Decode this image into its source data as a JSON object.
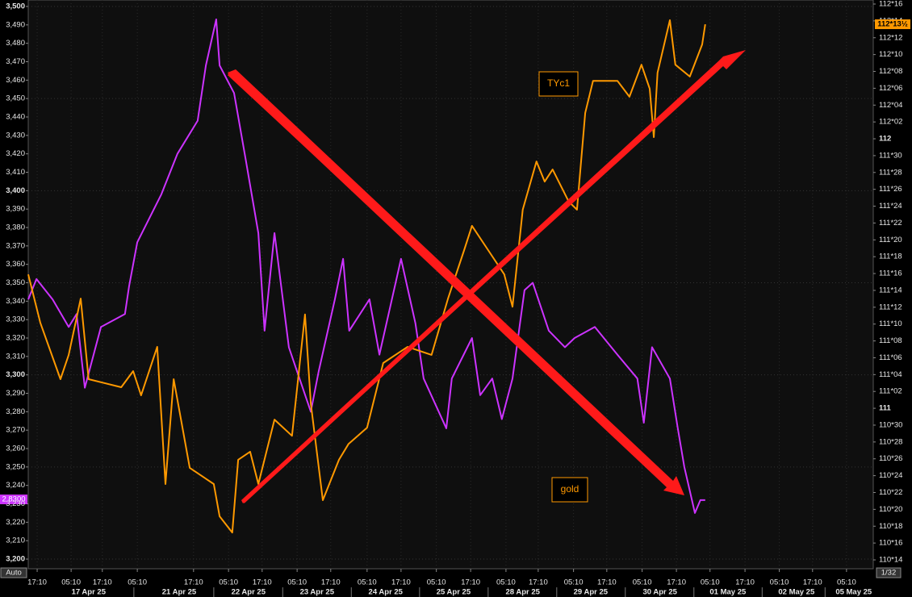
{
  "chart_data": {
    "type": "line",
    "xlim": [
      0,
      24.64
    ],
    "xticks": [
      {
        "value": 0.26,
        "label": "17:10"
      },
      {
        "value": 1.25,
        "label": "05:10"
      },
      {
        "value": 2.16,
        "label": "17:10"
      },
      {
        "value": 3.18,
        "label": "05:10"
      },
      {
        "value": 4.82,
        "label": "17:10"
      },
      {
        "value": 5.84,
        "label": "05:10"
      },
      {
        "value": 6.82,
        "label": "17:10"
      },
      {
        "value": 7.84,
        "label": "05:10"
      },
      {
        "value": 8.82,
        "label": "17:10"
      },
      {
        "value": 9.88,
        "label": "05:10"
      },
      {
        "value": 10.87,
        "label": "17:10"
      },
      {
        "value": 11.9,
        "label": "05:10"
      },
      {
        "value": 12.9,
        "label": "17:10"
      },
      {
        "value": 13.93,
        "label": "05:10"
      },
      {
        "value": 14.87,
        "label": "17:10"
      },
      {
        "value": 15.9,
        "label": "05:10"
      },
      {
        "value": 16.87,
        "label": "17:10"
      },
      {
        "value": 17.9,
        "label": "05:10"
      },
      {
        "value": 18.9,
        "label": "17:10"
      },
      {
        "value": 19.88,
        "label": "05:10"
      },
      {
        "value": 20.9,
        "label": "17:10"
      },
      {
        "value": 21.9,
        "label": "05:10"
      },
      {
        "value": 22.87,
        "label": "17:10"
      },
      {
        "value": 23.86,
        "label": "05:10"
      }
    ],
    "date_ticks": [
      {
        "value": 1.76,
        "label": "17 Apr 25"
      },
      {
        "value": 4.4,
        "label": "21 Apr 25"
      },
      {
        "value": 6.42,
        "label": "22 Apr 25"
      },
      {
        "value": 8.42,
        "label": "23 Apr 25"
      },
      {
        "value": 10.42,
        "label": "24 Apr 25"
      },
      {
        "value": 12.4,
        "label": "25 Apr 25"
      },
      {
        "value": 14.42,
        "label": "28 Apr 25"
      },
      {
        "value": 16.4,
        "label": "29 Apr 25"
      },
      {
        "value": 18.42,
        "label": "30 Apr 25"
      },
      {
        "value": 20.4,
        "label": "01 May 25"
      },
      {
        "value": 22.4,
        "label": "02 May 25"
      },
      {
        "value": 24.07,
        "label": "05 May 25"
      }
    ],
    "ylim": [
      3200,
      3500
    ],
    "yticks": [
      {
        "value": 3200,
        "label": "3,200"
      },
      {
        "value": 3210,
        "label": "3,210"
      },
      {
        "value": 3220,
        "label": "3,220"
      },
      {
        "value": 3230,
        "label": "3,230"
      },
      {
        "value": 3240,
        "label": "3,240"
      },
      {
        "value": 3250,
        "label": "3,250"
      },
      {
        "value": 3260,
        "label": "3,260"
      },
      {
        "value": 3270,
        "label": "3,270"
      },
      {
        "value": 3280,
        "label": "3,280"
      },
      {
        "value": 3290,
        "label": "3,290"
      },
      {
        "value": 3300,
        "label": "3,300"
      },
      {
        "value": 3310,
        "label": "3,310"
      },
      {
        "value": 3320,
        "label": "3,320"
      },
      {
        "value": 3330,
        "label": "3,330"
      },
      {
        "value": 3340,
        "label": "3,340"
      },
      {
        "value": 3350,
        "label": "3,350"
      },
      {
        "value": 3360,
        "label": "3,360"
      },
      {
        "value": 3370,
        "label": "3,370"
      },
      {
        "value": 3380,
        "label": "3,380"
      },
      {
        "value": 3390,
        "label": "3,390"
      },
      {
        "value": 3400,
        "label": "3,400"
      },
      {
        "value": 3410,
        "label": "3,410"
      },
      {
        "value": 3420,
        "label": "3,420"
      },
      {
        "value": 3430,
        "label": "3,430"
      },
      {
        "value": 3440,
        "label": "3,440"
      },
      {
        "value": 3450,
        "label": "3,450"
      },
      {
        "value": 3460,
        "label": "3,460"
      },
      {
        "value": 3470,
        "label": "3,470"
      },
      {
        "value": 3480,
        "label": "3,480"
      },
      {
        "value": 3490,
        "label": "3,490"
      },
      {
        "value": 3500,
        "label": "3,500"
      }
    ],
    "y2lim": [
      110.4375,
      112.5
    ],
    "y2ticks": [
      {
        "value": 110.4375,
        "label": "110*14"
      },
      {
        "value": 110.5,
        "label": "110*16"
      },
      {
        "value": 110.5625,
        "label": "110*18"
      },
      {
        "value": 110.625,
        "label": "110*20"
      },
      {
        "value": 110.6875,
        "label": "110*22"
      },
      {
        "value": 110.75,
        "label": "110*24"
      },
      {
        "value": 110.8125,
        "label": "110*26"
      },
      {
        "value": 110.875,
        "label": "110*28"
      },
      {
        "value": 110.9375,
        "label": "110*30"
      },
      111,
      {
        "value": 111.0625,
        "label": "111*02"
      },
      {
        "value": 111.125,
        "label": "111*04"
      },
      {
        "value": 111.1875,
        "label": "111*06"
      },
      {
        "value": 111.25,
        "label": "111*08"
      },
      {
        "value": 111.3125,
        "label": "111*10"
      },
      {
        "value": 111.375,
        "label": "111*12"
      },
      {
        "value": 111.4375,
        "label": "111*14"
      },
      {
        "value": 111.5,
        "label": "111*16"
      },
      {
        "value": 111.5625,
        "label": "111*18"
      },
      {
        "value": 111.625,
        "label": "111*20"
      },
      {
        "value": 111.6875,
        "label": "111*22"
      },
      {
        "value": 111.75,
        "label": "111*24"
      },
      {
        "value": 111.8125,
        "label": "111*26"
      },
      {
        "value": 111.875,
        "label": "111*28"
      },
      {
        "value": 111.9375,
        "label": "111*30"
      },
      112,
      {
        "value": 112.0625,
        "label": "112*02"
      },
      {
        "value": 112.125,
        "label": "112*04"
      },
      {
        "value": 112.1875,
        "label": "112*06"
      },
      {
        "value": 112.25,
        "label": "112*08"
      },
      {
        "value": 112.3125,
        "label": "112*10"
      },
      {
        "value": 112.375,
        "label": "112*12"
      },
      {
        "value": 112.4375,
        "label": "112*14"
      },
      {
        "value": 112.5,
        "label": "112*16"
      }
    ],
    "grid": true,
    "scale_label": "Auto",
    "y2_increment_label": "1/32",
    "left_marker_label": "2.8300",
    "annotations": [
      "TYc1",
      "gold"
    ],
    "series": [
      {
        "name": "gold",
        "color": "#cc33ff",
        "x": [
          0,
          0.24,
          0.71,
          1.18,
          1.41,
          1.65,
          2.12,
          2.82,
          2.94,
          3.18,
          3.88,
          4.35,
          4.94,
          5.18,
          5.48,
          5.58,
          6.0,
          6.35,
          6.71,
          6.89,
          7.18,
          7.6,
          8.24,
          8.47,
          8.94,
          9.18,
          9.36,
          9.95,
          10.24,
          10.87,
          11.29,
          11.53,
          12.19,
          12.35,
          12.94,
          13.18,
          13.53,
          13.81,
          14.12,
          14.47,
          14.71,
          15.18,
          15.65,
          15.93,
          16.52,
          17.18,
          17.76,
          17.95,
          18.19,
          18.71,
          18.94,
          19.13,
          19.44,
          19.6,
          19.74
        ],
        "values": [
          3341,
          3352,
          3341,
          3326,
          3333,
          3293,
          3326,
          3333,
          3348,
          3372,
          3398,
          3420,
          3438,
          3468,
          3493,
          3468,
          3453,
          3416,
          3377,
          3324,
          3377,
          3315,
          3280,
          3302,
          3341,
          3363,
          3324,
          3341,
          3311,
          3363,
          3328,
          3298,
          3271,
          3298,
          3320,
          3289,
          3298,
          3276,
          3298,
          3346,
          3350,
          3324,
          3315,
          3320,
          3326,
          3311,
          3298,
          3274,
          3315,
          3298,
          3271,
          3250,
          3225,
          3232,
          3232
        ]
      },
      {
        "name": "TYc1",
        "color": "#ff9900",
        "axis": "y2",
        "last_label": "112*13½",
        "x": [
          0,
          0.35,
          0.94,
          1.18,
          1.53,
          1.76,
          2.71,
          3.06,
          3.29,
          3.76,
          4.0,
          4.24,
          4.71,
          5.41,
          5.58,
          5.95,
          6.12,
          6.47,
          6.71,
          7.18,
          7.69,
          8.07,
          8.24,
          8.59,
          9.06,
          9.34,
          9.88,
          10.35,
          11.06,
          11.76,
          12.24,
          12.71,
          12.94,
          13.41,
          13.88,
          14.12,
          14.42,
          14.82,
          15.06,
          15.29,
          15.76,
          16.0,
          16.24,
          16.47,
          17.18,
          17.53,
          17.88,
          18.12,
          18.24,
          18.35,
          18.71,
          18.87,
          19.29,
          19.65,
          19.74
        ],
        "values": [
          111.497,
          111.318,
          111.108,
          111.198,
          111.407,
          111.108,
          111.078,
          111.138,
          111.048,
          111.228,
          110.719,
          111.108,
          110.779,
          110.719,
          110.599,
          110.539,
          110.809,
          110.839,
          110.719,
          110.958,
          110.898,
          111.348,
          111.018,
          110.659,
          110.809,
          110.868,
          110.928,
          111.168,
          111.228,
          111.198,
          111.407,
          111.587,
          111.677,
          111.587,
          111.497,
          111.377,
          111.737,
          111.916,
          111.841,
          111.886,
          111.767,
          111.737,
          112.096,
          112.215,
          112.215,
          112.156,
          112.275,
          112.186,
          112.006,
          112.245,
          112.44,
          112.275,
          112.231,
          112.35,
          112.425
        ]
      }
    ]
  }
}
